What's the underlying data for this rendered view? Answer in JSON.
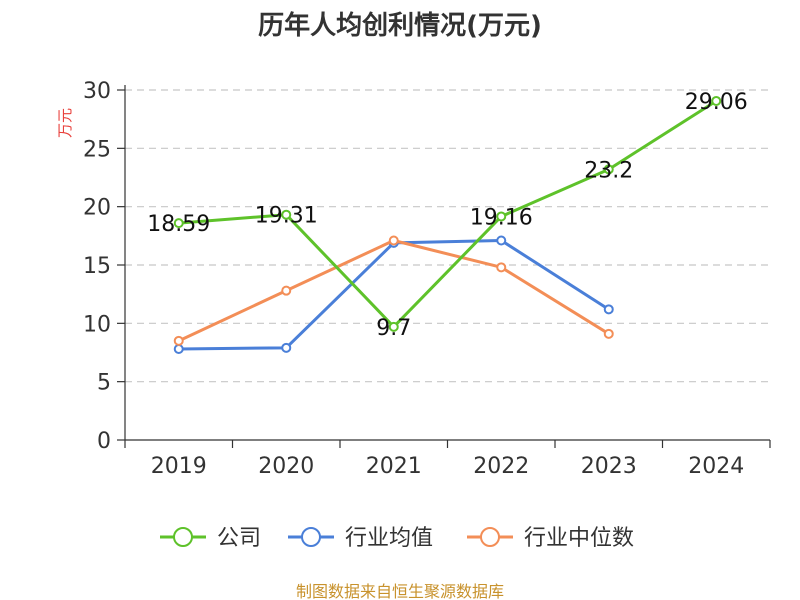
{
  "chart_data": {
    "type": "line",
    "title": "历年人均创利情况(万元)",
    "ylabel": "万元",
    "xlabel": "",
    "categories": [
      "2019",
      "2020",
      "2021",
      "2022",
      "2023",
      "2024"
    ],
    "ylim": [
      0,
      30
    ],
    "yticks": [
      0,
      5,
      10,
      15,
      20,
      25,
      30
    ],
    "grid": true,
    "legend_position": "bottom",
    "series": [
      {
        "name": "公司",
        "color": "#5ec22a",
        "values": [
          18.59,
          19.31,
          9.7,
          19.16,
          23.2,
          29.06
        ],
        "labels": [
          "18.59",
          "19.31",
          "9.7",
          "19.16",
          "23.2",
          "29.06"
        ]
      },
      {
        "name": "行业均值",
        "color": "#4a7fd8",
        "values": [
          7.8,
          7.9,
          16.9,
          17.1,
          11.2,
          null
        ]
      },
      {
        "name": "行业中位数",
        "color": "#f38e57",
        "values": [
          8.5,
          12.8,
          17.1,
          14.8,
          9.1,
          null
        ]
      }
    ],
    "source": "制图数据来自恒生聚源数据库"
  }
}
